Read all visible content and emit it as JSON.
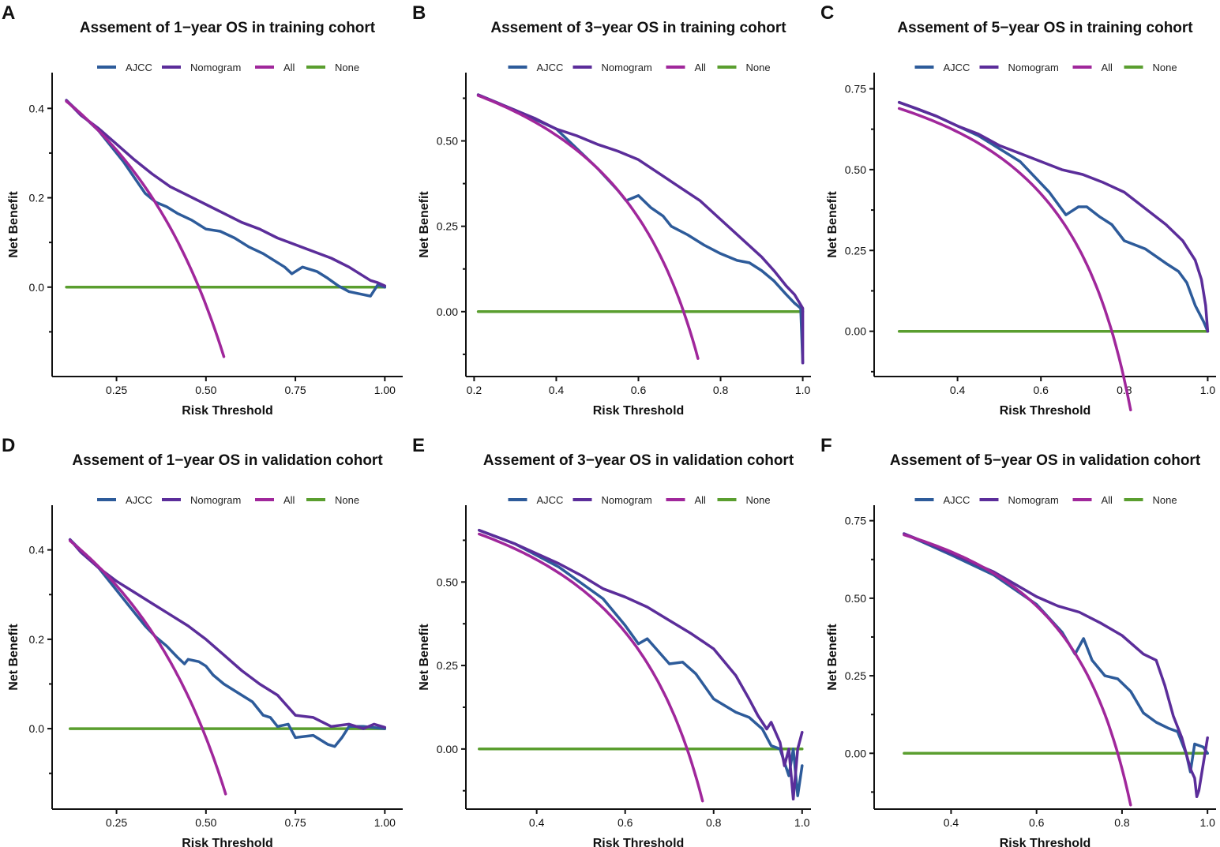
{
  "colors": {
    "AJCC": "#2d5b9a",
    "Nomogram": "#5b2d9a",
    "All": "#a0279b",
    "None": "#5a9e2f"
  },
  "legend_labels": [
    "AJCC",
    "Nomogram",
    "All",
    "None"
  ],
  "chart_data": [
    {
      "letter": "A",
      "type": "line",
      "title": "Assement of 1−year OS in training cohort",
      "xlabel": "Risk Threshold",
      "ylabel": "Net Benefit",
      "xlim": [
        0.07,
        1.05
      ],
      "ylim": [
        -0.2,
        0.48
      ],
      "xticks": [
        0.25,
        0.5,
        0.75,
        1.0
      ],
      "xtick_labels": [
        "0.25",
        "0.50",
        "0.75",
        "1.00"
      ],
      "yticks": [
        0.0,
        0.2,
        0.4
      ],
      "ytick_labels": [
        "0.0",
        "0.2",
        "0.4"
      ],
      "minor_yticks": [
        -0.1,
        0.1,
        0.3
      ],
      "prevalence": 0.48,
      "all_range": [
        0.11,
        0.55
      ],
      "series": [
        {
          "name": "Nomogram",
          "x": [
            0.11,
            0.15,
            0.2,
            0.25,
            0.3,
            0.35,
            0.4,
            0.45,
            0.5,
            0.55,
            0.6,
            0.65,
            0.7,
            0.75,
            0.8,
            0.85,
            0.9,
            0.93,
            0.96,
            0.98,
            1.0
          ],
          "y": [
            0.418,
            0.385,
            0.355,
            0.32,
            0.285,
            0.253,
            0.225,
            0.205,
            0.185,
            0.165,
            0.145,
            0.13,
            0.11,
            0.095,
            0.08,
            0.065,
            0.045,
            0.03,
            0.015,
            0.01,
            0.003
          ]
        },
        {
          "name": "AJCC",
          "x": [
            0.11,
            0.2,
            0.27,
            0.33,
            0.36,
            0.39,
            0.42,
            0.46,
            0.5,
            0.54,
            0.58,
            0.62,
            0.66,
            0.69,
            0.72,
            0.74,
            0.77,
            0.81,
            0.84,
            0.87,
            0.9,
            0.93,
            0.96,
            0.98,
            1.0
          ],
          "y": [
            0.418,
            0.35,
            0.28,
            0.21,
            0.19,
            0.18,
            0.165,
            0.15,
            0.13,
            0.125,
            0.11,
            0.09,
            0.075,
            0.06,
            0.045,
            0.03,
            0.045,
            0.035,
            0.02,
            0.003,
            -0.01,
            -0.015,
            -0.02,
            0.005,
            0.0
          ]
        },
        {
          "name": "None",
          "x": [
            0.11,
            1.0
          ],
          "y": [
            0.0,
            0.0
          ]
        }
      ]
    },
    {
      "letter": "B",
      "type": "line",
      "title": "Assement of 3−year OS in training cohort",
      "xlabel": "Risk Threshold",
      "ylabel": "Net Benefit",
      "xlim": [
        0.18,
        1.02
      ],
      "ylim": [
        -0.19,
        0.7
      ],
      "xticks": [
        0.2,
        0.4,
        0.6,
        0.8,
        1.0
      ],
      "xtick_labels": [
        "0.2",
        "0.4",
        "0.6",
        "0.8",
        "1.0"
      ],
      "yticks": [
        0.0,
        0.25,
        0.5
      ],
      "ytick_labels": [
        "0.00",
        "0.25",
        "0.50"
      ],
      "minor_yticks": [
        -0.125,
        0.125,
        0.375,
        0.625
      ],
      "prevalence": 0.71,
      "all_range": [
        0.21,
        0.745
      ],
      "series": [
        {
          "name": "Nomogram",
          "x": [
            0.21,
            0.25,
            0.3,
            0.35,
            0.4,
            0.45,
            0.5,
            0.55,
            0.6,
            0.65,
            0.7,
            0.75,
            0.8,
            0.85,
            0.9,
            0.93,
            0.96,
            0.98,
            0.99,
            1.0,
            1.0
          ],
          "y": [
            0.635,
            0.615,
            0.59,
            0.565,
            0.535,
            0.515,
            0.49,
            0.47,
            0.445,
            0.405,
            0.365,
            0.325,
            0.27,
            0.215,
            0.16,
            0.12,
            0.075,
            0.05,
            0.03,
            0.01,
            -0.15
          ]
        },
        {
          "name": "AJCC",
          "x": [
            0.21,
            0.3,
            0.4,
            0.5,
            0.55,
            0.57,
            0.6,
            0.63,
            0.66,
            0.68,
            0.72,
            0.76,
            0.8,
            0.84,
            0.87,
            0.9,
            0.93,
            0.96,
            0.98,
            0.995,
            1.0
          ],
          "y": [
            0.635,
            0.59,
            0.535,
            0.42,
            0.355,
            0.325,
            0.34,
            0.305,
            0.28,
            0.25,
            0.225,
            0.195,
            0.17,
            0.15,
            0.143,
            0.12,
            0.09,
            0.05,
            0.025,
            0.01,
            -0.15
          ]
        },
        {
          "name": "None",
          "x": [
            0.21,
            1.0
          ],
          "y": [
            0.0,
            0.0
          ]
        }
      ]
    },
    {
      "letter": "C",
      "type": "line",
      "title": "Assement of 5−year OS in training cohort",
      "xlabel": "Risk Threshold",
      "ylabel": "Net Benefit",
      "xlim": [
        0.2,
        1.02
      ],
      "ylim": [
        -0.14,
        0.8
      ],
      "xticks": [
        0.4,
        0.6,
        0.8,
        1.0
      ],
      "xtick_labels": [
        "0.4",
        "0.6",
        "0.8",
        "1.0"
      ],
      "yticks": [
        0.0,
        0.25,
        0.5,
        0.75
      ],
      "ytick_labels": [
        "0.00",
        "0.25",
        "0.50",
        "0.75"
      ],
      "minor_yticks": [
        -0.125,
        0.125,
        0.375,
        0.625
      ],
      "prevalence": 0.77,
      "all_range": [
        0.26,
        0.815
      ],
      "series": [
        {
          "name": "Nomogram",
          "x": [
            0.26,
            0.3,
            0.35,
            0.4,
            0.45,
            0.5,
            0.55,
            0.6,
            0.65,
            0.7,
            0.75,
            0.8,
            0.85,
            0.9,
            0.94,
            0.97,
            0.985,
            0.995,
            1.0
          ],
          "y": [
            0.708,
            0.69,
            0.665,
            0.635,
            0.61,
            0.575,
            0.55,
            0.525,
            0.5,
            0.485,
            0.46,
            0.43,
            0.38,
            0.33,
            0.28,
            0.22,
            0.16,
            0.08,
            0.0
          ]
        },
        {
          "name": "AJCC",
          "x": [
            0.26,
            0.35,
            0.45,
            0.55,
            0.62,
            0.66,
            0.69,
            0.71,
            0.74,
            0.77,
            0.8,
            0.85,
            0.9,
            0.93,
            0.95,
            0.97,
            0.99,
            1.0
          ],
          "y": [
            0.708,
            0.665,
            0.605,
            0.525,
            0.43,
            0.36,
            0.385,
            0.385,
            0.355,
            0.33,
            0.28,
            0.255,
            0.21,
            0.185,
            0.15,
            0.08,
            0.03,
            0.0
          ]
        },
        {
          "name": "None",
          "x": [
            0.26,
            1.0
          ],
          "y": [
            0.0,
            0.0
          ]
        }
      ]
    },
    {
      "letter": "D",
      "type": "line",
      "title": "Assement of 1−year OS in validation cohort",
      "xlabel": "Risk Threshold",
      "ylabel": "Net Benefit",
      "xlim": [
        0.07,
        1.05
      ],
      "ylim": [
        -0.18,
        0.5
      ],
      "xticks": [
        0.25,
        0.5,
        0.75,
        1.0
      ],
      "xtick_labels": [
        "0.25",
        "0.50",
        "0.75",
        "1.00"
      ],
      "yticks": [
        0.0,
        0.2,
        0.4
      ],
      "ytick_labels": [
        "0.0",
        "0.2",
        "0.4"
      ],
      "minor_yticks": [
        -0.1,
        0.1,
        0.3
      ],
      "prevalence": 0.49,
      "all_range": [
        0.12,
        0.555
      ],
      "series": [
        {
          "name": "Nomogram",
          "x": [
            0.12,
            0.15,
            0.2,
            0.25,
            0.3,
            0.35,
            0.4,
            0.45,
            0.5,
            0.55,
            0.6,
            0.65,
            0.7,
            0.75,
            0.8,
            0.85,
            0.9,
            0.94,
            0.97,
            1.0
          ],
          "y": [
            0.423,
            0.395,
            0.36,
            0.33,
            0.305,
            0.28,
            0.255,
            0.23,
            0.2,
            0.165,
            0.13,
            0.1,
            0.075,
            0.03,
            0.025,
            0.005,
            0.01,
            0.0,
            0.01,
            0.003
          ]
        },
        {
          "name": "AJCC",
          "x": [
            0.12,
            0.2,
            0.28,
            0.33,
            0.36,
            0.39,
            0.42,
            0.44,
            0.45,
            0.48,
            0.5,
            0.52,
            0.55,
            0.6,
            0.63,
            0.66,
            0.68,
            0.7,
            0.73,
            0.75,
            0.8,
            0.84,
            0.86,
            0.88,
            0.9,
            0.94,
            1.0
          ],
          "y": [
            0.423,
            0.36,
            0.28,
            0.23,
            0.205,
            0.185,
            0.16,
            0.145,
            0.155,
            0.15,
            0.14,
            0.12,
            0.1,
            0.075,
            0.06,
            0.03,
            0.025,
            0.005,
            0.01,
            -0.02,
            -0.015,
            -0.035,
            -0.04,
            -0.02,
            0.005,
            0.005,
            0.0
          ]
        },
        {
          "name": "None",
          "x": [
            0.12,
            1.0
          ],
          "y": [
            0.0,
            0.0
          ]
        }
      ]
    },
    {
      "letter": "E",
      "type": "line",
      "title": "Assement of 3−year OS in validation cohort",
      "xlabel": "Risk Threshold",
      "ylabel": "Net Benefit",
      "xlim": [
        0.24,
        1.02
      ],
      "ylim": [
        -0.18,
        0.73
      ],
      "xticks": [
        0.4,
        0.6,
        0.8,
        1.0
      ],
      "xtick_labels": [
        "0.4",
        "0.6",
        "0.8",
        "1.0"
      ],
      "yticks": [
        0.0,
        0.25,
        0.5
      ],
      "ytick_labels": [
        "0.00",
        "0.25",
        "0.50"
      ],
      "minor_yticks": [
        -0.125,
        0.125,
        0.375,
        0.625
      ],
      "prevalence": 0.74,
      "all_range": [
        0.27,
        0.775
      ],
      "series": [
        {
          "name": "Nomogram",
          "x": [
            0.27,
            0.3,
            0.35,
            0.4,
            0.45,
            0.5,
            0.55,
            0.6,
            0.65,
            0.7,
            0.75,
            0.8,
            0.85,
            0.88,
            0.9,
            0.92,
            0.93,
            0.95,
            0.96,
            0.97,
            0.98,
            0.99,
            1.0
          ],
          "y": [
            0.655,
            0.64,
            0.615,
            0.585,
            0.555,
            0.52,
            0.48,
            0.455,
            0.425,
            0.385,
            0.345,
            0.3,
            0.22,
            0.15,
            0.1,
            0.06,
            0.08,
            0.02,
            -0.05,
            0.0,
            -0.15,
            0.0,
            0.05
          ]
        },
        {
          "name": "AJCC",
          "x": [
            0.27,
            0.35,
            0.45,
            0.55,
            0.6,
            0.63,
            0.65,
            0.67,
            0.7,
            0.73,
            0.76,
            0.8,
            0.85,
            0.88,
            0.91,
            0.93,
            0.95,
            0.97,
            0.98,
            0.99,
            1.0
          ],
          "y": [
            0.655,
            0.615,
            0.545,
            0.45,
            0.37,
            0.315,
            0.33,
            0.3,
            0.255,
            0.26,
            0.225,
            0.15,
            0.11,
            0.095,
            0.06,
            0.01,
            0.0,
            -0.08,
            0.0,
            -0.14,
            -0.05
          ]
        },
        {
          "name": "None",
          "x": [
            0.27,
            1.0
          ],
          "y": [
            0.0,
            0.0
          ]
        }
      ]
    },
    {
      "letter": "F",
      "type": "line",
      "title": "Assement of 5−year OS in validation cohort",
      "xlabel": "Risk Threshold",
      "ylabel": "Net Benefit",
      "xlim": [
        0.22,
        1.02
      ],
      "ylim": [
        -0.18,
        0.8
      ],
      "xticks": [
        0.4,
        0.6,
        0.8,
        1.0
      ],
      "xtick_labels": [
        "0.4",
        "0.6",
        "0.8",
        "1.0"
      ],
      "yticks": [
        0.0,
        0.25,
        0.5,
        0.75
      ],
      "ytick_labels": [
        "0.00",
        "0.25",
        "0.50",
        "0.75"
      ],
      "minor_yticks": [
        -0.125,
        0.125,
        0.375,
        0.625
      ],
      "prevalence": 0.79,
      "all_range": [
        0.29,
        0.82
      ],
      "series": [
        {
          "name": "Nomogram",
          "x": [
            0.29,
            0.35,
            0.4,
            0.45,
            0.5,
            0.55,
            0.6,
            0.65,
            0.7,
            0.75,
            0.8,
            0.85,
            0.88,
            0.9,
            0.92,
            0.94,
            0.96,
            0.97,
            0.975,
            0.98,
            1.0
          ],
          "y": [
            0.708,
            0.675,
            0.645,
            0.615,
            0.585,
            0.545,
            0.505,
            0.475,
            0.455,
            0.42,
            0.38,
            0.32,
            0.3,
            0.22,
            0.12,
            0.05,
            -0.05,
            -0.08,
            -0.14,
            -0.12,
            0.05
          ]
        },
        {
          "name": "AJCC",
          "x": [
            0.29,
            0.4,
            0.5,
            0.6,
            0.66,
            0.69,
            0.71,
            0.73,
            0.76,
            0.79,
            0.82,
            0.85,
            0.88,
            0.91,
            0.93,
            0.95,
            0.96,
            0.97,
            0.99,
            1.0
          ],
          "y": [
            0.708,
            0.64,
            0.575,
            0.48,
            0.39,
            0.32,
            0.37,
            0.3,
            0.25,
            0.24,
            0.2,
            0.13,
            0.1,
            0.08,
            0.07,
            0.0,
            -0.06,
            0.03,
            0.02,
            0.0
          ]
        },
        {
          "name": "None",
          "x": [
            0.29,
            1.0
          ],
          "y": [
            0.0,
            0.0
          ]
        }
      ]
    }
  ]
}
